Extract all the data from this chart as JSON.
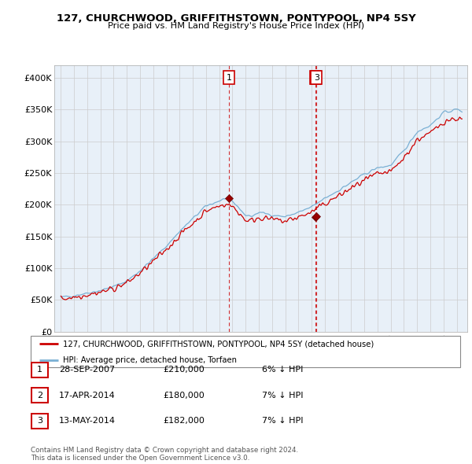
{
  "title1": "127, CHURCHWOOD, GRIFFITHSTOWN, PONTYPOOL, NP4 5SY",
  "title2": "Price paid vs. HM Land Registry's House Price Index (HPI)",
  "ylim": [
    0,
    420000
  ],
  "yticks": [
    0,
    50000,
    100000,
    150000,
    200000,
    250000,
    300000,
    350000,
    400000
  ],
  "ytick_labels": [
    "£0",
    "£50K",
    "£100K",
    "£150K",
    "£200K",
    "£250K",
    "£300K",
    "£350K",
    "£400K"
  ],
  "legend_line1": "127, CHURCHWOOD, GRIFFITHSTOWN, PONTYPOOL, NP4 5SY (detached house)",
  "legend_line2": "HPI: Average price, detached house, Torfaen",
  "line1_color": "#cc0000",
  "line2_color": "#7ab0d4",
  "chart_bg": "#e8f0f8",
  "table_rows": [
    {
      "num": "1",
      "date": "28-SEP-2007",
      "price": "£210,000",
      "note": "6% ↓ HPI"
    },
    {
      "num": "2",
      "date": "17-APR-2014",
      "price": "£180,000",
      "note": "7% ↓ HPI"
    },
    {
      "num": "3",
      "date": "13-MAY-2014",
      "price": "£182,000",
      "note": "7% ↓ HPI"
    }
  ],
  "footnote": "Contains HM Land Registry data © Crown copyright and database right 2024.\nThis data is licensed under the Open Government Licence v3.0.",
  "sale_dates": [
    2007.75,
    2014.29,
    2014.37
  ],
  "sale_prices": [
    210000,
    180000,
    182000
  ],
  "sale_labels": [
    "1",
    "2",
    "3"
  ],
  "xlim_start": 1994.5,
  "xlim_end": 2025.8
}
